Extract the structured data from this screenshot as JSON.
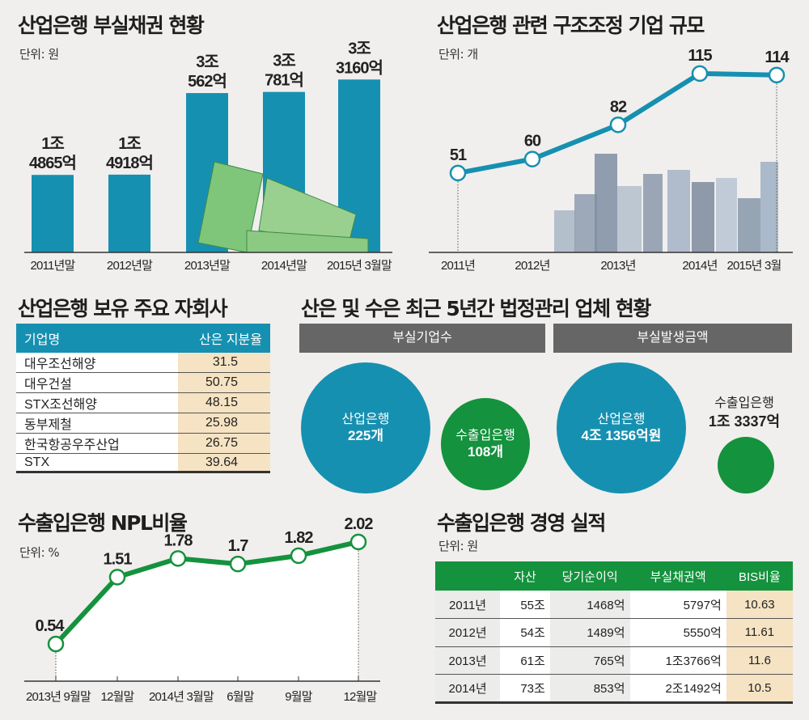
{
  "colors": {
    "blue": "#1690b1",
    "green": "#14923d",
    "gray_header": "#666666",
    "highlight": "#f5e3c3",
    "background": "#f0efed"
  },
  "chart_data": [
    {
      "type": "bar",
      "title": "산업은행 부실채권 현황",
      "unit": "단위: 원",
      "categories": [
        "2011년말",
        "2012년말",
        "2013년말",
        "2014년말",
        "2015년 3월말"
      ],
      "values": [
        14865,
        14918,
        30562,
        30781,
        33160
      ],
      "value_unit": "억원",
      "data_labels": [
        [
          "1조",
          "4865억"
        ],
        [
          "1조",
          "4918억"
        ],
        [
          "3조",
          "562억"
        ],
        [
          "3조",
          "781억"
        ],
        [
          "3조",
          "3160억"
        ]
      ],
      "ylim": [
        0,
        36000
      ],
      "grid": false
    },
    {
      "type": "line",
      "title": "산업은행 관련 구조조정 기업 규모",
      "unit": "단위: 개",
      "categories": [
        "2011년",
        "2012년",
        "2013년",
        "2014년",
        "2015년 3월"
      ],
      "values": [
        51,
        60,
        82,
        115,
        114
      ],
      "data_labels": [
        "51",
        "60",
        "82",
        "115",
        "114"
      ],
      "ylim": [
        0,
        130
      ],
      "grid": false
    },
    {
      "type": "table",
      "title": "산업은행 보유 주요 자회사",
      "columns": [
        "기업명",
        "산은 지분율"
      ],
      "rows": [
        [
          "대우조선해양",
          "31.5"
        ],
        [
          "대우건설",
          "50.75"
        ],
        [
          "STX조선해양",
          "48.15"
        ],
        [
          "동부제철",
          "25.98"
        ],
        [
          "한국항공우주산업",
          "26.75"
        ],
        [
          "STX",
          "39.64"
        ]
      ]
    },
    {
      "type": "bubble",
      "title": "산은 및 수은 최근 5년간 법정관리 업체 현황",
      "groups": [
        {
          "header": "부실기업수",
          "items": [
            {
              "name": "산업은행",
              "value_label": "225개",
              "value": 225
            },
            {
              "name": "수출입은행",
              "value_label": "108개",
              "value": 108
            }
          ]
        },
        {
          "header": "부실발생금액",
          "items": [
            {
              "name": "산업은행",
              "value_label": "4조 1356억원",
              "value": 41356
            },
            {
              "name": "수출입은행",
              "value_label": "1조 3337억",
              "value": 13337
            }
          ]
        }
      ]
    },
    {
      "type": "line",
      "title": "수출입은행 NPL비율",
      "unit": "단위: %",
      "categories": [
        "2013년 9월말",
        "12월말",
        "2014년 3월말",
        "6월말",
        "9월말",
        "12월말"
      ],
      "values": [
        0.54,
        1.51,
        1.78,
        1.7,
        1.82,
        2.02
      ],
      "data_labels": [
        "0.54",
        "1.51",
        "1.78",
        "1.7",
        "1.82",
        "2.02"
      ],
      "ylim": [
        0,
        2.3
      ],
      "grid": false
    },
    {
      "type": "table",
      "title": "수출입은행 경영 실적",
      "unit": "단위: 원",
      "columns": [
        "",
        "자산",
        "당기순이익",
        "부실채권액",
        "BIS비율"
      ],
      "rows": [
        [
          "2011년",
          "55조",
          "1468억",
          "5797억",
          "10.63"
        ],
        [
          "2012년",
          "54조",
          "1489억",
          "5550억",
          "11.61"
        ],
        [
          "2013년",
          "61조",
          "765억",
          "1조3766억",
          "11.6"
        ],
        [
          "2014년",
          "73조",
          "853억",
          "2조1492억",
          "10.5"
        ]
      ]
    }
  ]
}
